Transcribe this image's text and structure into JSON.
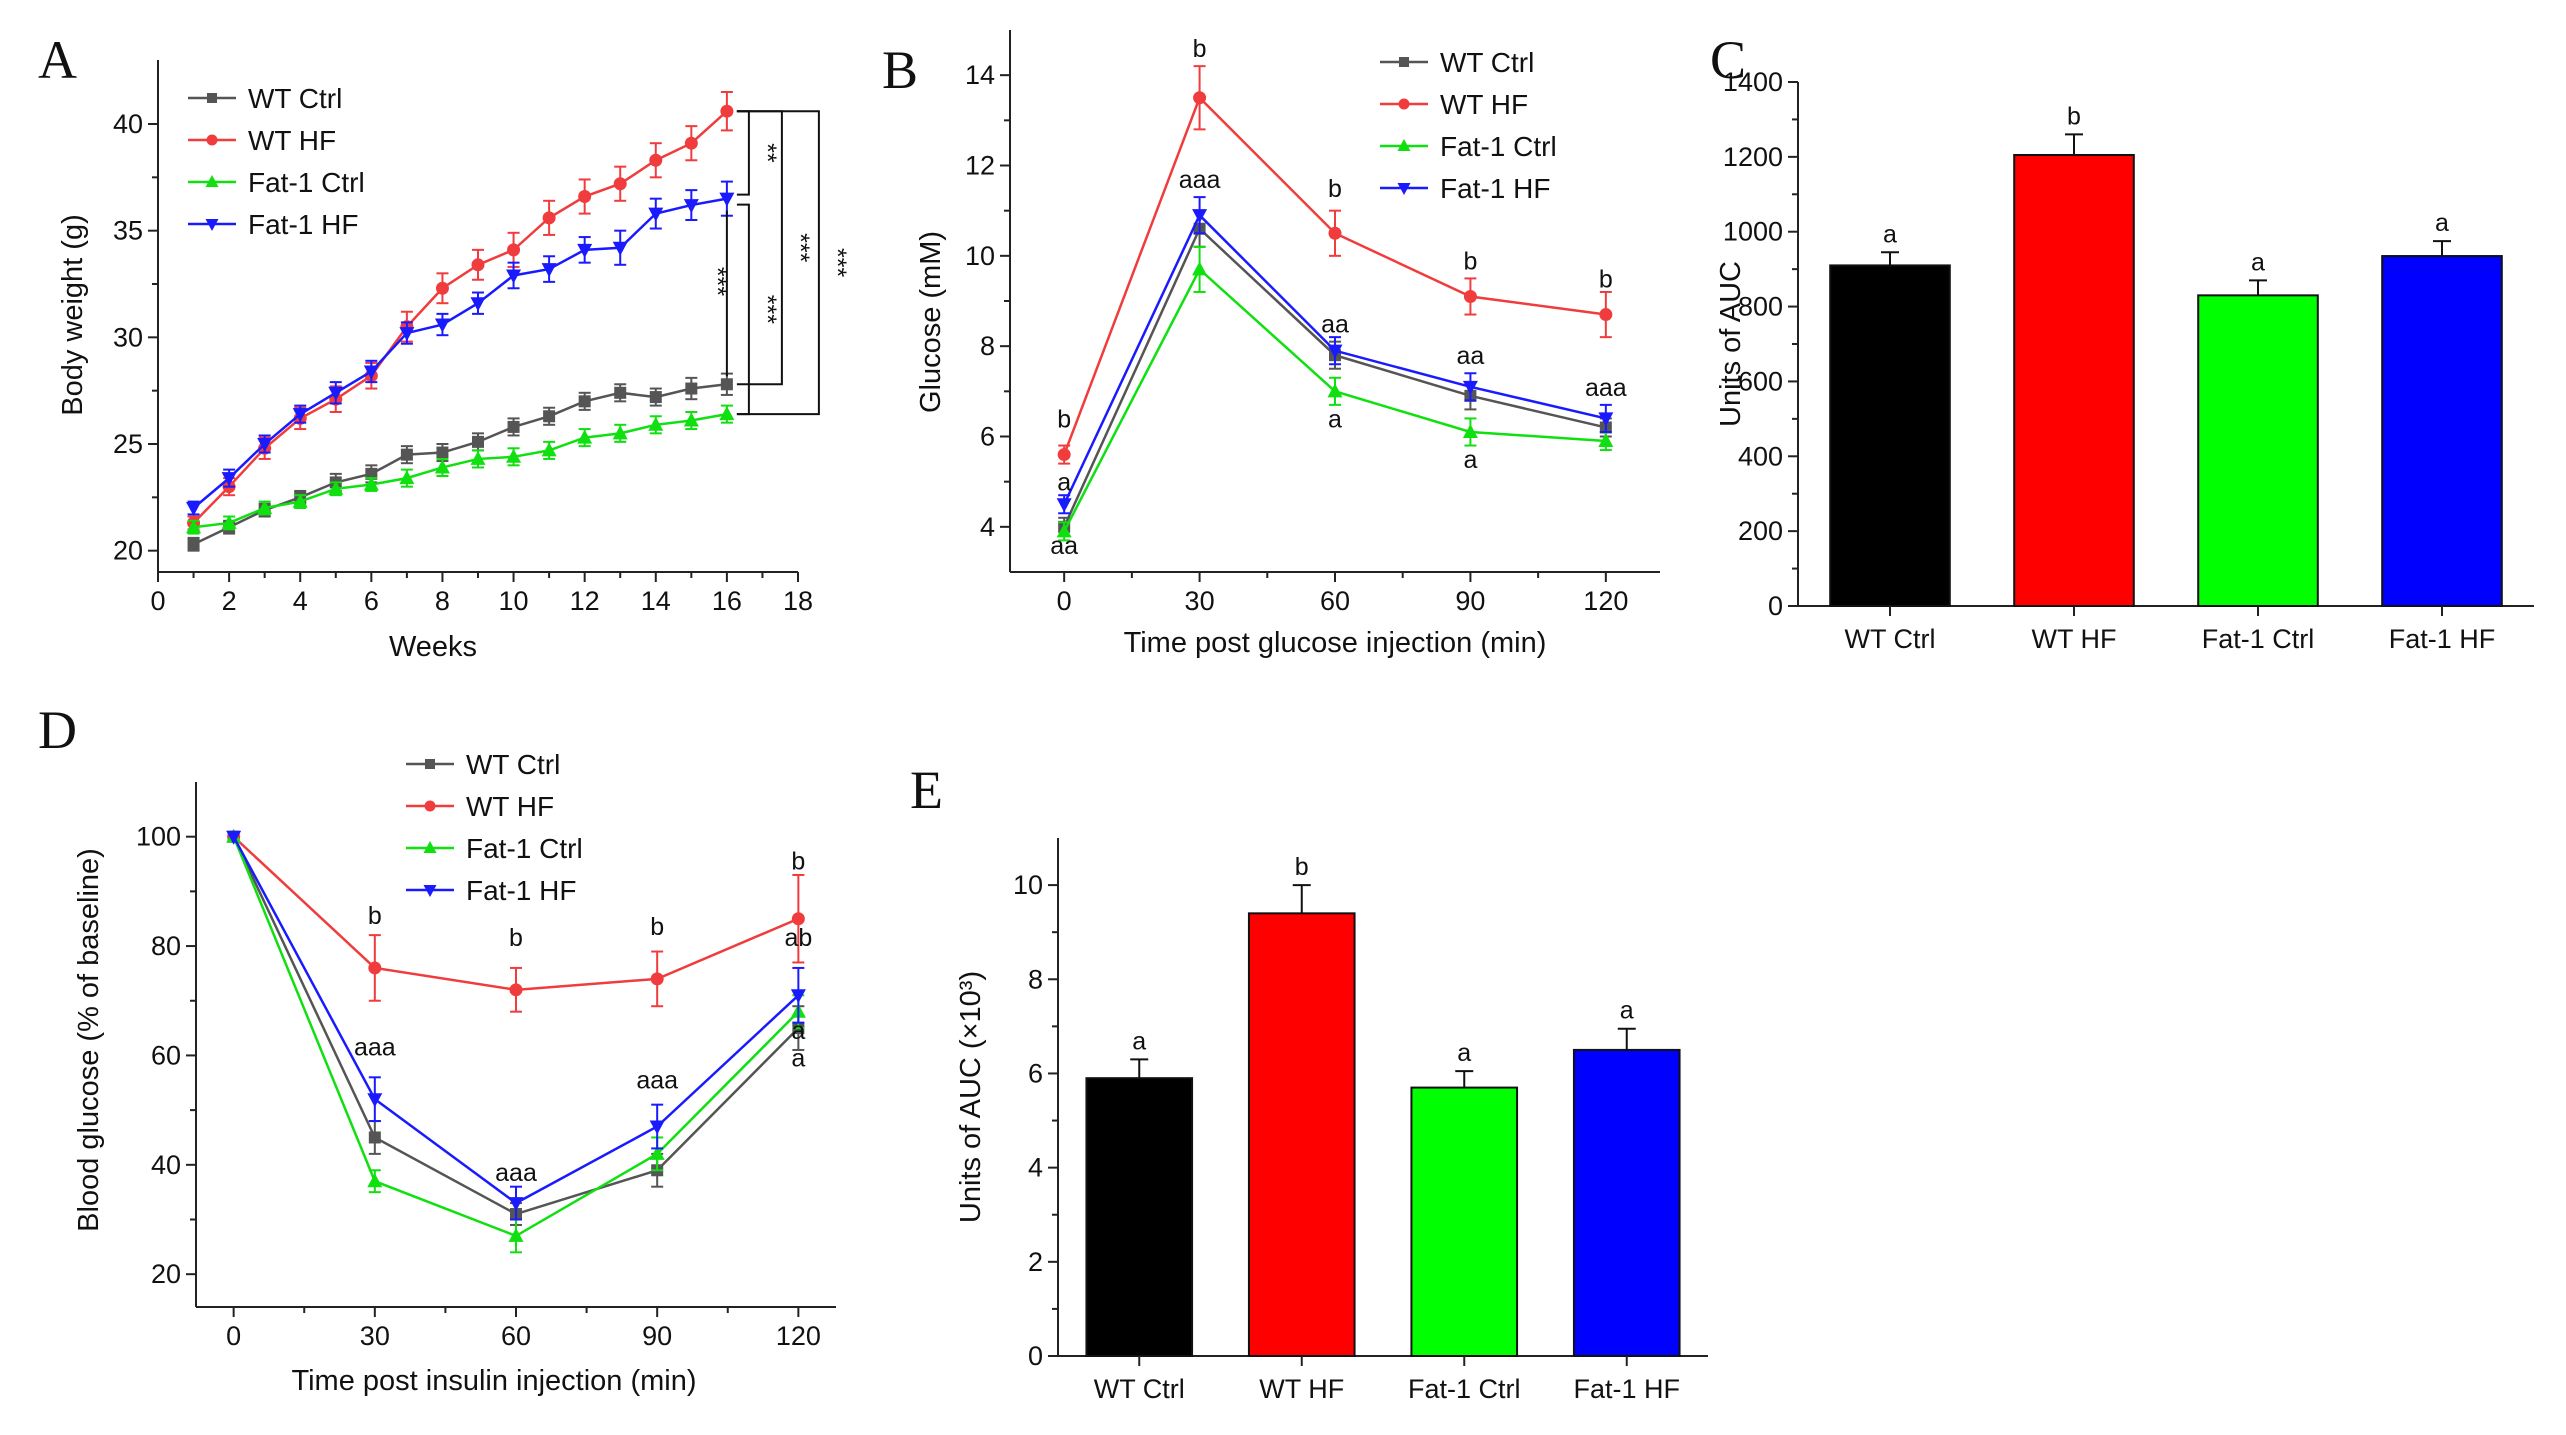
{
  "figure_labels": [
    "A",
    "B",
    "C",
    "D",
    "E"
  ],
  "chart_data": [
    {
      "panel": "A",
      "type": "line",
      "xlabel": "Weeks",
      "ylabel": "Body weight (g)",
      "xlim": [
        0,
        18
      ],
      "ylim": [
        19,
        43
      ],
      "xticks": [
        0,
        2,
        4,
        6,
        8,
        10,
        12,
        14,
        16,
        18
      ],
      "yticks": [
        20,
        25,
        30,
        35,
        40
      ],
      "x": [
        1,
        2,
        3,
        4,
        5,
        6,
        7,
        8,
        9,
        10,
        11,
        12,
        13,
        14,
        15,
        16
      ],
      "series": [
        {
          "name": "WT Ctrl",
          "color": "#555555",
          "marker": "square",
          "values": [
            20.3,
            21.1,
            21.9,
            22.5,
            23.2,
            23.6,
            24.5,
            24.6,
            25.1,
            25.8,
            26.3,
            27.0,
            27.4,
            27.2,
            27.6,
            27.8
          ],
          "errors": [
            0.3,
            0.3,
            0.3,
            0.3,
            0.4,
            0.4,
            0.4,
            0.4,
            0.4,
            0.4,
            0.4,
            0.4,
            0.4,
            0.4,
            0.5,
            0.5
          ]
        },
        {
          "name": "WT HF",
          "color": "#f03c3c",
          "marker": "circle",
          "values": [
            21.3,
            23.0,
            24.8,
            26.2,
            27.1,
            28.2,
            30.5,
            32.3,
            33.4,
            34.1,
            35.6,
            36.6,
            37.2,
            38.3,
            39.1,
            40.6
          ],
          "errors": [
            0.3,
            0.4,
            0.5,
            0.5,
            0.6,
            0.6,
            0.7,
            0.7,
            0.7,
            0.8,
            0.8,
            0.8,
            0.8,
            0.8,
            0.8,
            0.9
          ]
        },
        {
          "name": "Fat-1 Ctrl",
          "color": "#10e010",
          "marker": "triangle-up",
          "values": [
            21.1,
            21.3,
            22.0,
            22.3,
            22.9,
            23.1,
            23.4,
            23.9,
            24.3,
            24.4,
            24.7,
            25.3,
            25.5,
            25.9,
            26.1,
            26.4
          ],
          "errors": [
            0.3,
            0.3,
            0.3,
            0.3,
            0.3,
            0.3,
            0.4,
            0.4,
            0.4,
            0.4,
            0.4,
            0.4,
            0.4,
            0.4,
            0.4,
            0.4
          ]
        },
        {
          "name": "Fat-1 HF",
          "color": "#1a1aff",
          "marker": "triangle-down",
          "values": [
            22.0,
            23.4,
            25.0,
            26.4,
            27.4,
            28.4,
            30.2,
            30.6,
            31.6,
            32.9,
            33.2,
            34.1,
            34.2,
            35.8,
            36.2,
            36.5
          ],
          "errors": [
            0.3,
            0.4,
            0.4,
            0.4,
            0.5,
            0.5,
            0.5,
            0.5,
            0.5,
            0.6,
            0.6,
            0.6,
            0.8,
            0.7,
            0.7,
            0.8
          ]
        }
      ],
      "legend": "top-left",
      "significance": [
        {
          "between": [
            "WT HF",
            "Fat-1 HF"
          ],
          "label": "**"
        },
        {
          "between": [
            "Fat-1 HF",
            "Fat-1 Ctrl"
          ],
          "label": "***"
        },
        {
          "between": [
            "WT HF",
            "WT Ctrl"
          ],
          "label": "***"
        },
        {
          "between": [
            "WT HF",
            "Fat-1 Ctrl"
          ],
          "label": "***"
        },
        {
          "between": [
            "Fat-1 HF",
            "WT Ctrl"
          ],
          "label": "***"
        }
      ]
    },
    {
      "panel": "B",
      "type": "line",
      "xlabel": "Time post glucose injection (min)",
      "ylabel": "Glucose (mM)",
      "xlim": [
        -12,
        132
      ],
      "ylim": [
        3,
        15
      ],
      "xticks": [
        0,
        30,
        60,
        90,
        120
      ],
      "yticks": [
        4,
        6,
        8,
        10,
        12,
        14
      ],
      "x": [
        0,
        30,
        60,
        90,
        120
      ],
      "series": [
        {
          "name": "WT Ctrl",
          "color": "#555555",
          "marker": "square",
          "values": [
            4.0,
            10.6,
            7.8,
            6.9,
            6.2
          ],
          "errors": [
            0.2,
            0.4,
            0.3,
            0.3,
            0.2
          ]
        },
        {
          "name": "WT HF",
          "color": "#f03c3c",
          "marker": "circle",
          "values": [
            5.6,
            13.5,
            10.5,
            9.1,
            8.7
          ],
          "errors": [
            0.2,
            0.7,
            0.5,
            0.4,
            0.5
          ]
        },
        {
          "name": "Fat-1 Ctrl",
          "color": "#10e010",
          "marker": "triangle-up",
          "values": [
            3.9,
            9.7,
            7.0,
            6.1,
            5.9
          ],
          "errors": [
            0.2,
            0.5,
            0.3,
            0.3,
            0.2
          ]
        },
        {
          "name": "Fat-1 HF",
          "color": "#1a1aff",
          "marker": "triangle-down",
          "values": [
            4.5,
            10.9,
            7.9,
            7.1,
            6.4
          ],
          "errors": [
            0.2,
            0.4,
            0.3,
            0.3,
            0.3
          ]
        }
      ],
      "annotations": [
        {
          "x": 0,
          "text": "b",
          "y": 6.2
        },
        {
          "x": 0,
          "text": "a",
          "y": 4.8
        },
        {
          "x": 0,
          "text": "aa",
          "y": 3.4
        },
        {
          "x": 30,
          "text": "b",
          "y": 14.4
        },
        {
          "x": 30,
          "text": "aaa",
          "y": 11.5
        },
        {
          "x": 60,
          "text": "b",
          "y": 11.3
        },
        {
          "x": 60,
          "text": "aa",
          "y": 8.3
        },
        {
          "x": 60,
          "text": "a",
          "y": 6.2
        },
        {
          "x": 90,
          "text": "b",
          "y": 9.7
        },
        {
          "x": 90,
          "text": "aa",
          "y": 7.6
        },
        {
          "x": 90,
          "text": "a",
          "y": 5.3
        },
        {
          "x": 120,
          "text": "b",
          "y": 9.3
        },
        {
          "x": 120,
          "text": "aaa",
          "y": 6.9
        }
      ],
      "legend": "top-right"
    },
    {
      "panel": "C",
      "type": "bar",
      "ylabel": "Units of AUC",
      "ylim": [
        0,
        1400
      ],
      "yticks": [
        0,
        200,
        400,
        600,
        800,
        1000,
        1200,
        1400
      ],
      "categories": [
        "WT Ctrl",
        "WT HF",
        "Fat-1 Ctrl",
        "Fat-1 HF"
      ],
      "values": [
        910,
        1205,
        830,
        935
      ],
      "errors": [
        35,
        55,
        40,
        40
      ],
      "labels": [
        "a",
        "b",
        "a",
        "a"
      ],
      "colors": [
        "#000000",
        "#ff0000",
        "#00ff00",
        "#0000ff"
      ]
    },
    {
      "panel": "D",
      "type": "line",
      "xlabel": "Time post insulin injection (min)",
      "ylabel": "Blood glucose (% of baseline)",
      "xlim": [
        -8,
        128
      ],
      "ylim": [
        14,
        110
      ],
      "xticks": [
        0,
        30,
        60,
        90,
        120
      ],
      "yticks": [
        20,
        40,
        60,
        80,
        100
      ],
      "x": [
        0,
        30,
        60,
        90,
        120
      ],
      "series": [
        {
          "name": "WT Ctrl",
          "color": "#555555",
          "marker": "square",
          "values": [
            100,
            45,
            31,
            39,
            65
          ],
          "errors": [
            0,
            3,
            2,
            3,
            4
          ]
        },
        {
          "name": "WT HF",
          "color": "#f03c3c",
          "marker": "circle",
          "values": [
            100,
            76,
            72,
            74,
            85
          ],
          "errors": [
            0,
            6,
            4,
            5,
            8
          ]
        },
        {
          "name": "Fat-1 Ctrl",
          "color": "#10e010",
          "marker": "triangle-up",
          "values": [
            100,
            37,
            27,
            42,
            68
          ],
          "errors": [
            0,
            2,
            3,
            3,
            3
          ]
        },
        {
          "name": "Fat-1 HF",
          "color": "#1a1aff",
          "marker": "triangle-down",
          "values": [
            100,
            52,
            33,
            47,
            71
          ],
          "errors": [
            0,
            4,
            3,
            4,
            5
          ]
        }
      ],
      "annotations": [
        {
          "x": 30,
          "text": "b",
          "y": 84
        },
        {
          "x": 30,
          "text": "aaa",
          "y": 60
        },
        {
          "x": 60,
          "text": "b",
          "y": 80
        },
        {
          "x": 60,
          "text": "aaa",
          "y": 37
        },
        {
          "x": 90,
          "text": "b",
          "y": 82
        },
        {
          "x": 90,
          "text": "aaa",
          "y": 54
        },
        {
          "x": 120,
          "text": "b",
          "y": 94
        },
        {
          "x": 120,
          "text": "ab",
          "y": 80
        },
        {
          "x": 120,
          "text": "a",
          "y": 63
        },
        {
          "x": 120,
          "text": "a",
          "y": 58
        }
      ],
      "legend": "top-center"
    },
    {
      "panel": "E",
      "type": "bar",
      "ylabel": "Units of AUC (×10³)",
      "ylim": [
        0,
        11
      ],
      "yticks": [
        0,
        2,
        4,
        6,
        8,
        10
      ],
      "categories": [
        "WT Ctrl",
        "WT HF",
        "Fat-1 Ctrl",
        "Fat-1 HF"
      ],
      "values": [
        5.9,
        9.4,
        5.7,
        6.5
      ],
      "errors": [
        0.4,
        0.6,
        0.35,
        0.45
      ],
      "labels": [
        "a",
        "b",
        "a",
        "a"
      ],
      "colors": [
        "#000000",
        "#ff0000",
        "#00ff00",
        "#0000ff"
      ]
    }
  ]
}
